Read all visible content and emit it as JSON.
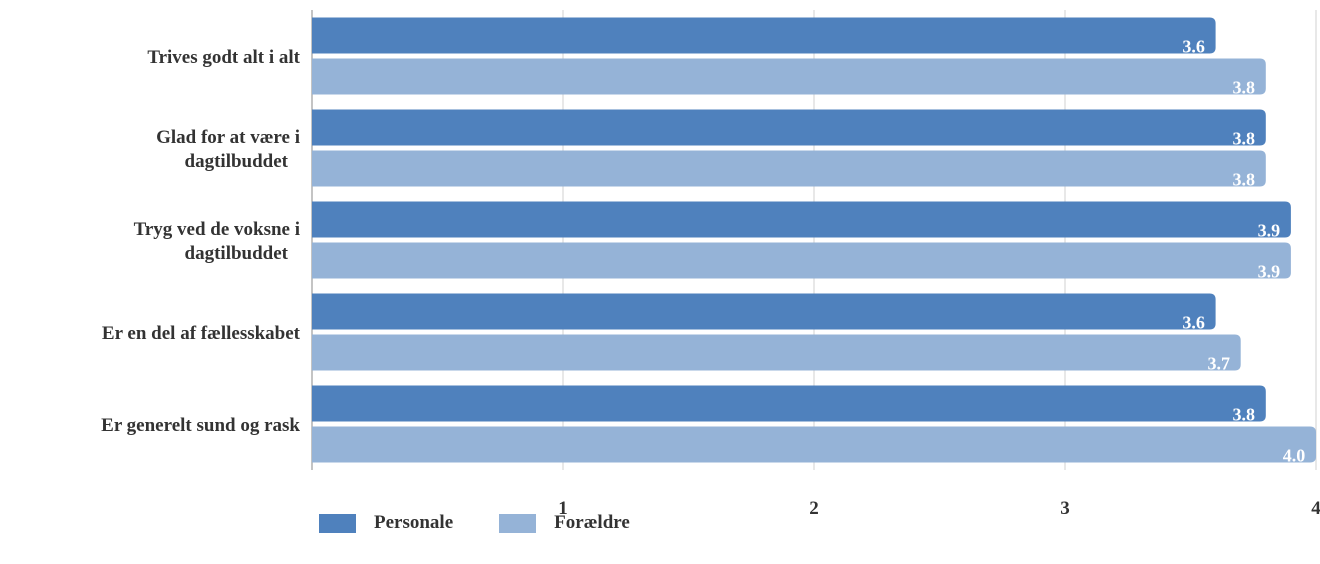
{
  "chart_data": {
    "type": "bar",
    "orientation": "horizontal",
    "categories": [
      "Trives godt alt i alt",
      "Glad for at være i dagtilbuddet",
      "Tryg ved de voksne i dagtilbuddet",
      "Er en del af fællesskabet",
      "Er generelt sund og rask"
    ],
    "category_lines": [
      [
        "Trives godt alt i alt"
      ],
      [
        "Glad for at være i",
        "dagtilbuddet"
      ],
      [
        "Tryg ved de voksne i",
        "dagtilbuddet"
      ],
      [
        "Er en del af fællesskabet"
      ],
      [
        "Er generelt sund og rask"
      ]
    ],
    "series": [
      {
        "name": "Personale",
        "color": "#4f81bd",
        "values": [
          3.6,
          3.8,
          3.9,
          3.6,
          3.8
        ],
        "labels": [
          "3.6",
          "3.8",
          "3.9",
          "3.6",
          "3.8"
        ]
      },
      {
        "name": "Forældre",
        "color": "#95b3d7",
        "values": [
          3.8,
          3.8,
          3.9,
          3.7,
          4.0
        ],
        "labels": [
          "3.8",
          "3.8",
          "3.9",
          "3.7",
          "4.0"
        ]
      }
    ],
    "xlim": [
      0,
      4
    ],
    "xticks": [
      "1",
      "2",
      "3",
      "4"
    ],
    "grid": true,
    "legend_position": "bottom-left"
  }
}
